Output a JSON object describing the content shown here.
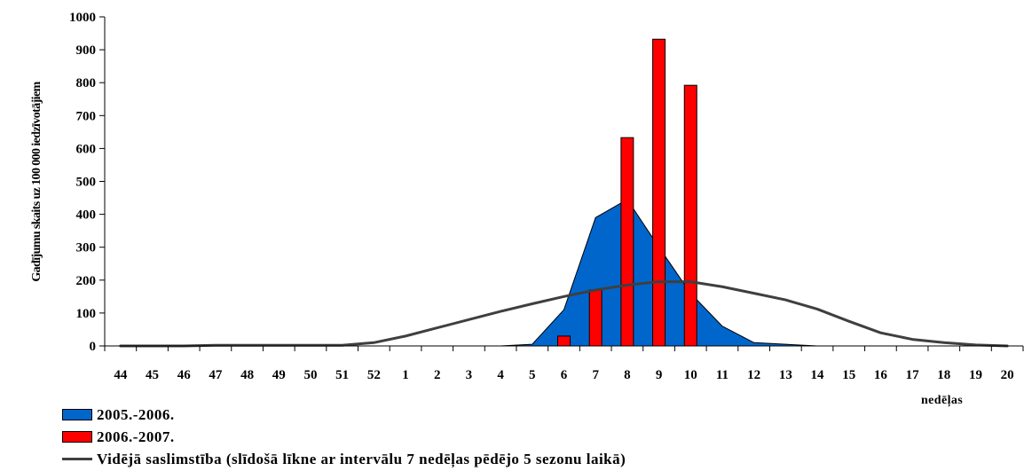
{
  "chart_data": {
    "type": "bar",
    "title": "",
    "ylabel": "Gadījumu skaits uz 100 000 iedzīvotājiem",
    "xlabel": "nedēļas",
    "ylim": [
      0,
      1000
    ],
    "yticks": [
      "0",
      "100",
      "200",
      "300",
      "400",
      "500",
      "600",
      "700",
      "800",
      "900",
      "1000"
    ],
    "categories": [
      "44",
      "45",
      "46",
      "47",
      "48",
      "49",
      "50",
      "51",
      "52",
      "1",
      "2",
      "3",
      "4",
      "5",
      "6",
      "7",
      "8",
      "9",
      "10",
      "11",
      "12",
      "13",
      "14",
      "15",
      "16",
      "17",
      "18",
      "19",
      "20"
    ],
    "series": [
      {
        "name": "2005.-2006.",
        "kind": "area",
        "color": "#0066cc",
        "values": [
          0,
          0,
          0,
          0,
          0,
          0,
          0,
          0,
          0,
          0,
          0,
          0,
          0,
          5,
          110,
          390,
          445,
          300,
          160,
          60,
          10,
          5,
          0,
          0,
          0,
          0,
          0,
          0,
          0
        ]
      },
      {
        "name": "2006.-2007.",
        "kind": "bar",
        "color": "#ff0000",
        "values": [
          0,
          0,
          0,
          0,
          0,
          0,
          0,
          0,
          0,
          0,
          0,
          0,
          0,
          0,
          30,
          170,
          633,
          932,
          792,
          0,
          0,
          0,
          0,
          0,
          0,
          0,
          0,
          0,
          0
        ]
      },
      {
        "name": "Vidējā saslimstība (slīdošā līkne ar intervālu 7 nedēļas pēdējo 5 sezonu laikā)",
        "kind": "line",
        "color": "#3f3f3f",
        "values": [
          0,
          0,
          0,
          2,
          2,
          2,
          2,
          2,
          10,
          30,
          55,
          80,
          105,
          128,
          150,
          170,
          185,
          195,
          195,
          180,
          160,
          140,
          112,
          75,
          40,
          20,
          10,
          3,
          0
        ]
      }
    ],
    "legend": [
      "2005.-2006.",
      "2006.-2007.",
      "Vidējā saslimstība (slīdošā līkne ar intervālu 7 nedēļas pēdējo 5 sezonu laikā)"
    ],
    "legend_position": "bottom-left",
    "grid": false
  }
}
